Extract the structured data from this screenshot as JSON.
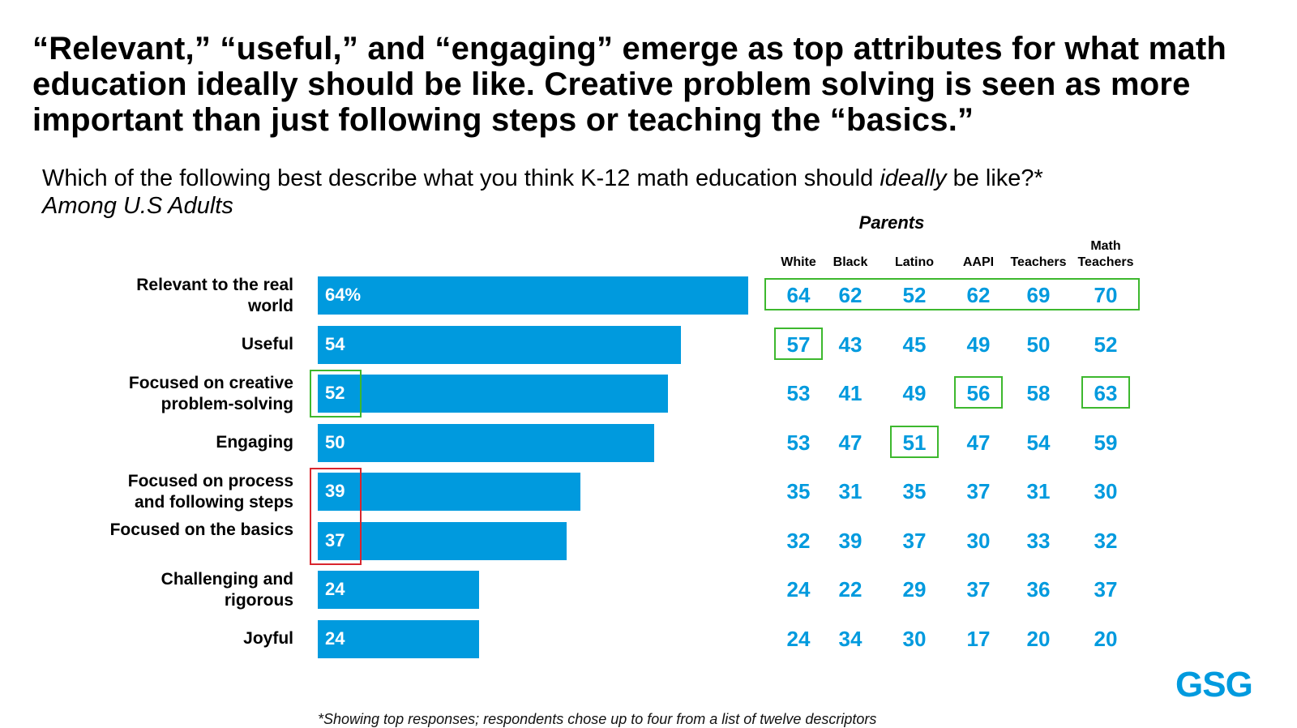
{
  "headline": "“Relevant,” “useful,” and “engaging” emerge as top attributes for what math education ideally should be like. Creative problem solving is seen as more important than just following steps or teaching the “basics.”",
  "question": {
    "before": "Which of the following best describe what you think K-12 math education should ",
    "emphasis": "ideally",
    "after": " be like?*"
  },
  "population": "Among U.S Adults",
  "footnote": "*Showing top responses; respondents chose up to four from a list of twelve descriptors",
  "logo": "GSG",
  "colors": {
    "bar": "#009ADE",
    "value_text": "#009ADE",
    "highlight_high": "#3DB82E",
    "highlight_low": "#D9262E"
  },
  "chart_data": {
    "type": "bar",
    "orientation": "horizontal",
    "title": "",
    "categories": [
      "Relevant to the real world",
      "Useful",
      "Focused on creative problem-solving",
      "Engaging",
      "Focused on process and following steps",
      "Focused on the basics",
      "Challenging and rigorous",
      "Joyful"
    ],
    "values": [
      64,
      54,
      52,
      50,
      39,
      37,
      24,
      24
    ],
    "value_labels": [
      "64%",
      "54",
      "52",
      "50",
      "39",
      "37",
      "24",
      "24"
    ],
    "xlim": [
      0,
      100
    ],
    "unit": "%",
    "group_label": "Parents",
    "table": {
      "columns": [
        "White",
        "Black",
        "Latino",
        "AAPI",
        "Teachers",
        "Math Teachers"
      ],
      "rows": [
        [
          64,
          62,
          52,
          62,
          69,
          70
        ],
        [
          57,
          43,
          45,
          49,
          50,
          52
        ],
        [
          53,
          41,
          49,
          56,
          58,
          63
        ],
        [
          53,
          47,
          51,
          47,
          54,
          59
        ],
        [
          35,
          31,
          35,
          37,
          31,
          30
        ],
        [
          32,
          39,
          37,
          30,
          33,
          32
        ],
        [
          24,
          22,
          29,
          37,
          36,
          37
        ],
        [
          24,
          34,
          30,
          17,
          20,
          20
        ]
      ]
    },
    "highlights": {
      "table_top": [
        {
          "row": 0,
          "col": 0,
          "span": 6
        },
        {
          "row": 1,
          "col": 0,
          "span": 1
        },
        {
          "row": 2,
          "col": 3,
          "span": 1
        },
        {
          "row": 2,
          "col": 5,
          "span": 1
        },
        {
          "row": 3,
          "col": 2,
          "span": 1
        }
      ],
      "bar_top": [
        2
      ],
      "bar_low": [
        4,
        5
      ]
    }
  }
}
